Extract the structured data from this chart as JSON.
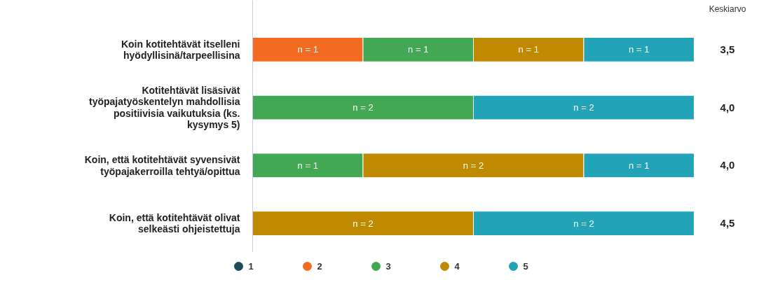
{
  "chart_data": {
    "type": "bar",
    "orientation": "horizontal",
    "stacked": true,
    "categories": [
      "Koin kotitehtävät itselleni hyödyllisinä/tarpeellisina",
      "Kotitehtävät lisäsivät työpajatyöskentelyn mahdollisia positiivisia vaikutuksia (ks. kysymys 5)",
      "Koin, että kotitehtävät syvensivät työpajakerroilla tehtyä/opittua",
      "Koin, että kotitehtävät olivat selkeästi ohjeistettuja"
    ],
    "series": [
      {
        "name": "1",
        "color": "#1f4b5c",
        "values": [
          null,
          null,
          null,
          null
        ],
        "value_labels": [
          null,
          null,
          null,
          null
        ]
      },
      {
        "name": "2",
        "color": "#f26b21",
        "values": [
          1,
          null,
          null,
          null
        ],
        "value_labels": [
          "n = 1",
          null,
          null,
          null
        ]
      },
      {
        "name": "3",
        "color": "#43a854",
        "values": [
          1,
          2,
          1,
          null
        ],
        "value_labels": [
          "n = 1",
          "n = 2",
          "n = 1",
          null
        ]
      },
      {
        "name": "4",
        "color": "#c08a00",
        "values": [
          1,
          null,
          2,
          2
        ],
        "value_labels": [
          "n = 1",
          null,
          "n = 2",
          "n = 2"
        ]
      },
      {
        "name": "5",
        "color": "#22a3b8",
        "values": [
          1,
          2,
          1,
          2
        ],
        "value_labels": [
          "n = 1",
          "n = 2",
          "n = 1",
          "n = 2"
        ]
      }
    ],
    "xlim": [
      0,
      4
    ],
    "tick_labels": "y",
    "grid": false,
    "legend": "bottom",
    "annotations": [
      "Keskiarvo",
      "3,5",
      "4,0",
      "4,0",
      "4,5"
    ]
  }
}
